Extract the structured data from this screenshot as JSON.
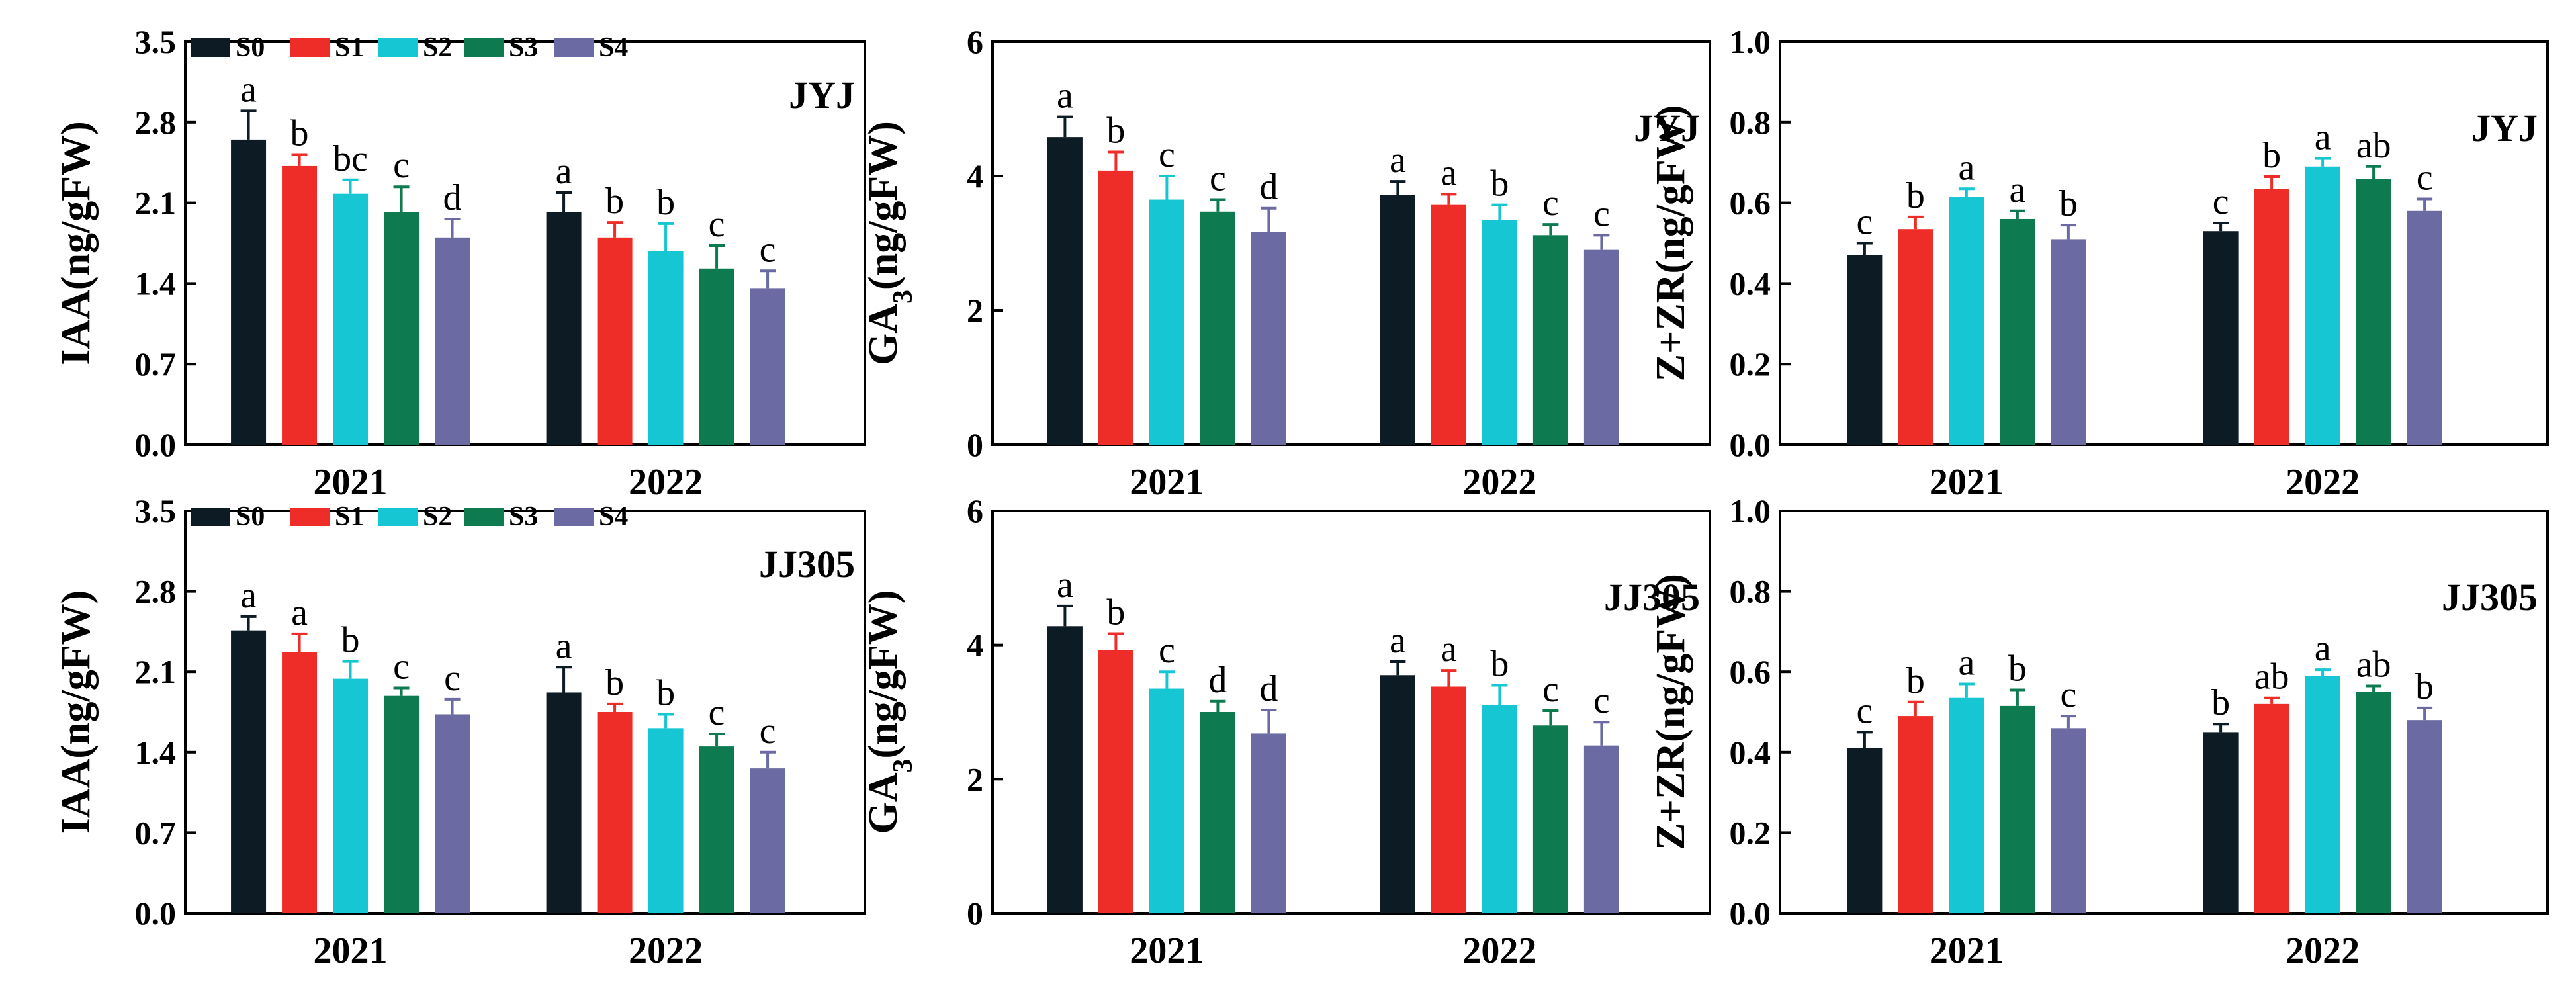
{
  "colors": {
    "S0": "#0d1c24",
    "S1": "#ef2d28",
    "S2": "#16c7d3",
    "S3": "#0d7b4f",
    "S4": "#6b6aa2",
    "axis": "#000000"
  },
  "legend": [
    "S0",
    "S1",
    "S2",
    "S3",
    "S4"
  ],
  "chart_data": [
    {
      "id": "iaa-jyj",
      "type": "bar",
      "ylabel": "IAA(ng/gFW)",
      "ylabel_sub": "",
      "ylabel_tail": "",
      "yticks": [
        "0.0",
        "0.7",
        "1.4",
        "2.1",
        "2.8",
        "3.5"
      ],
      "ylim": [
        0,
        3.5
      ],
      "cultivar": "JYJ",
      "legend": true,
      "categories": [
        "2021",
        "2022"
      ],
      "series": [
        {
          "name": "S0",
          "values": [
            2.65,
            2.02
          ],
          "err": [
            0.25,
            0.17
          ],
          "letters": [
            "a",
            "a"
          ]
        },
        {
          "name": "S1",
          "values": [
            2.42,
            1.8
          ],
          "err": [
            0.1,
            0.13
          ],
          "letters": [
            "b",
            "b"
          ]
        },
        {
          "name": "S2",
          "values": [
            2.18,
            1.68
          ],
          "err": [
            0.12,
            0.24
          ],
          "letters": [
            "bc",
            "b"
          ]
        },
        {
          "name": "S3",
          "values": [
            2.02,
            1.53
          ],
          "err": [
            0.22,
            0.2
          ],
          "letters": [
            "c",
            "c"
          ]
        },
        {
          "name": "S4",
          "values": [
            1.8,
            1.36
          ],
          "err": [
            0.16,
            0.15
          ],
          "letters": [
            "d",
            "c"
          ]
        }
      ]
    },
    {
      "id": "ga3-jyj",
      "type": "bar",
      "ylabel": "GA",
      "ylabel_sub": "3",
      "ylabel_tail": "(ng/gFW)",
      "yticks": [
        "0",
        "2",
        "4",
        "6"
      ],
      "ylim": [
        0,
        6
      ],
      "cultivar": "JYJ",
      "legend": false,
      "categories": [
        "2021",
        "2022"
      ],
      "series": [
        {
          "name": "S0",
          "values": [
            4.58,
            3.72
          ],
          "err": [
            0.3,
            0.2
          ],
          "letters": [
            "a",
            "a"
          ]
        },
        {
          "name": "S1",
          "values": [
            4.08,
            3.57
          ],
          "err": [
            0.28,
            0.16
          ],
          "letters": [
            "b",
            "a"
          ]
        },
        {
          "name": "S2",
          "values": [
            3.65,
            3.35
          ],
          "err": [
            0.35,
            0.22
          ],
          "letters": [
            "c",
            "b"
          ]
        },
        {
          "name": "S3",
          "values": [
            3.47,
            3.12
          ],
          "err": [
            0.18,
            0.16
          ],
          "letters": [
            "c",
            "c"
          ]
        },
        {
          "name": "S4",
          "values": [
            3.17,
            2.9
          ],
          "err": [
            0.35,
            0.22
          ],
          "letters": [
            "d",
            "c"
          ]
        }
      ]
    },
    {
      "id": "zzr-jyj",
      "type": "bar",
      "ylabel": "Z+ZR(ng/gFW)",
      "ylabel_sub": "",
      "ylabel_tail": "",
      "yticks": [
        "0.0",
        "0.2",
        "0.4",
        "0.6",
        "0.8",
        "1.0"
      ],
      "ylim": [
        0,
        1.0
      ],
      "cultivar": "JYJ",
      "legend": false,
      "categories": [
        "2021",
        "2022"
      ],
      "series": [
        {
          "name": "S0",
          "values": [
            0.47,
            0.53
          ],
          "err": [
            0.03,
            0.02
          ],
          "letters": [
            "c",
            "c"
          ]
        },
        {
          "name": "S1",
          "values": [
            0.535,
            0.635
          ],
          "err": [
            0.03,
            0.03
          ],
          "letters": [
            "b",
            "b"
          ]
        },
        {
          "name": "S2",
          "values": [
            0.615,
            0.69
          ],
          "err": [
            0.02,
            0.02
          ],
          "letters": [
            "a",
            "a"
          ]
        },
        {
          "name": "S3",
          "values": [
            0.56,
            0.66
          ],
          "err": [
            0.02,
            0.03
          ],
          "letters": [
            "a",
            "ab"
          ]
        },
        {
          "name": "S4",
          "values": [
            0.51,
            0.58
          ],
          "err": [
            0.035,
            0.03
          ],
          "letters": [
            "b",
            "c"
          ]
        }
      ]
    },
    {
      "id": "iaa-jj305",
      "type": "bar",
      "ylabel": "IAA(ng/gFW)",
      "ylabel_sub": "",
      "ylabel_tail": "",
      "yticks": [
        "0.0",
        "0.7",
        "1.4",
        "2.1",
        "2.8",
        "3.5"
      ],
      "ylim": [
        0,
        3.5
      ],
      "cultivar": "JJ305",
      "legend": true,
      "categories": [
        "2021",
        "2022"
      ],
      "series": [
        {
          "name": "S0",
          "values": [
            2.46,
            1.92
          ],
          "err": [
            0.12,
            0.22
          ],
          "letters": [
            "a",
            "a"
          ]
        },
        {
          "name": "S1",
          "values": [
            2.27,
            1.75
          ],
          "err": [
            0.16,
            0.07
          ],
          "letters": [
            "a",
            "b"
          ]
        },
        {
          "name": "S2",
          "values": [
            2.04,
            1.61
          ],
          "err": [
            0.15,
            0.12
          ],
          "letters": [
            "b",
            "b"
          ]
        },
        {
          "name": "S3",
          "values": [
            1.89,
            1.45
          ],
          "err": [
            0.07,
            0.11
          ],
          "letters": [
            "c",
            "c"
          ]
        },
        {
          "name": "S4",
          "values": [
            1.73,
            1.26
          ],
          "err": [
            0.13,
            0.14
          ],
          "letters": [
            "c",
            "c"
          ]
        }
      ]
    },
    {
      "id": "ga3-jj305",
      "type": "bar",
      "ylabel": "GA",
      "ylabel_sub": "3",
      "ylabel_tail": "(ng/gFW)",
      "yticks": [
        "0",
        "2",
        "4",
        "6"
      ],
      "ylim": [
        0,
        6
      ],
      "cultivar": "JJ305",
      "legend": false,
      "categories": [
        "2021",
        "2022"
      ],
      "series": [
        {
          "name": "S0",
          "values": [
            4.28,
            3.55
          ],
          "err": [
            0.3,
            0.2
          ],
          "letters": [
            "a",
            "a"
          ]
        },
        {
          "name": "S1",
          "values": [
            3.92,
            3.38
          ],
          "err": [
            0.25,
            0.24
          ],
          "letters": [
            "b",
            "a"
          ]
        },
        {
          "name": "S2",
          "values": [
            3.35,
            3.1
          ],
          "err": [
            0.25,
            0.3
          ],
          "letters": [
            "c",
            "b"
          ]
        },
        {
          "name": "S3",
          "values": [
            3.0,
            2.8
          ],
          "err": [
            0.16,
            0.22
          ],
          "letters": [
            "d",
            "c"
          ]
        },
        {
          "name": "S4",
          "values": [
            2.68,
            2.5
          ],
          "err": [
            0.35,
            0.35
          ],
          "letters": [
            "d",
            "c"
          ]
        }
      ]
    },
    {
      "id": "zzr-jj305",
      "type": "bar",
      "ylabel": "Z+ZR(ng/gFW)",
      "ylabel_sub": "",
      "ylabel_tail": "",
      "yticks": [
        "0.0",
        "0.2",
        "0.4",
        "0.6",
        "0.8",
        "1.0"
      ],
      "ylim": [
        0,
        1.0
      ],
      "cultivar": "JJ305",
      "legend": false,
      "categories": [
        "2021",
        "2022"
      ],
      "series": [
        {
          "name": "S0",
          "values": [
            0.41,
            0.45
          ],
          "err": [
            0.04,
            0.02
          ],
          "letters": [
            "c",
            "b"
          ]
        },
        {
          "name": "S1",
          "values": [
            0.49,
            0.52
          ],
          "err": [
            0.035,
            0.015
          ],
          "letters": [
            "b",
            "ab"
          ]
        },
        {
          "name": "S2",
          "values": [
            0.535,
            0.59
          ],
          "err": [
            0.035,
            0.015
          ],
          "letters": [
            "a",
            "a"
          ]
        },
        {
          "name": "S3",
          "values": [
            0.515,
            0.55
          ],
          "err": [
            0.04,
            0.015
          ],
          "letters": [
            "b",
            "ab"
          ]
        },
        {
          "name": "S4",
          "values": [
            0.46,
            0.48
          ],
          "err": [
            0.03,
            0.03
          ],
          "letters": [
            "c",
            "b"
          ]
        }
      ]
    }
  ]
}
